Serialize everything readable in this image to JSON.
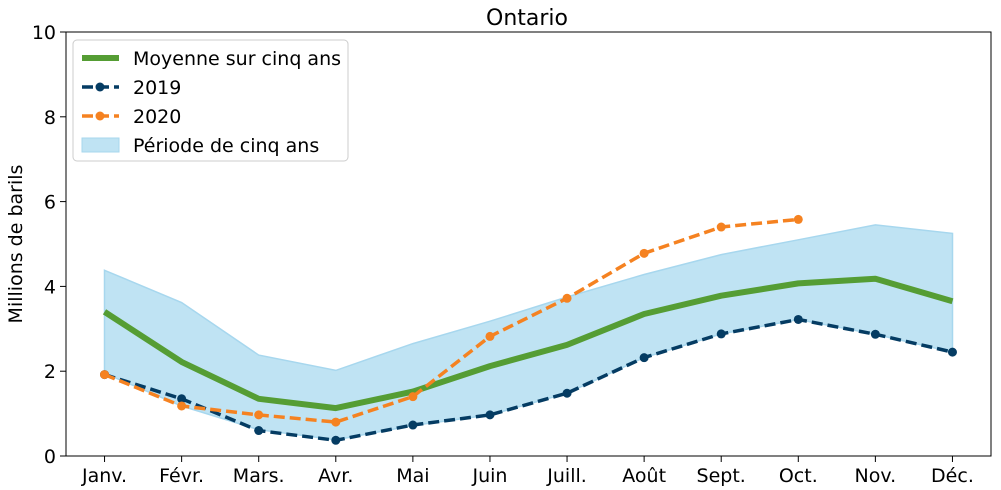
{
  "chart_data": {
    "type": "line",
    "title": "Ontario",
    "xlabel": "",
    "ylabel": "Millions de barils",
    "ylim": [
      0,
      10
    ],
    "yticks": [
      0,
      2,
      4,
      6,
      8,
      10
    ],
    "categories": [
      "Janv.",
      "Févr.",
      "Mars.",
      "Avr.",
      "Mai",
      "Juin",
      "Juill.",
      "Août",
      "Sept.",
      "Oct.",
      "Nov.",
      "Déc."
    ],
    "grid": false,
    "legend_position": "top-left",
    "band": {
      "name": "Période de cinq ans",
      "color": "#bfe3f3",
      "edge_color": "#a7d7ee",
      "upper": [
        4.38,
        3.62,
        2.38,
        2.02,
        2.65,
        3.18,
        3.75,
        4.28,
        4.75,
        5.1,
        5.45,
        5.25
      ],
      "lower": [
        1.95,
        1.18,
        0.62,
        0.38,
        0.72,
        0.97,
        1.48,
        2.32,
        2.88,
        3.22,
        2.87,
        2.45
      ]
    },
    "series": [
      {
        "name": "Moyenne sur cinq ans",
        "color": "#559d34",
        "style": "solid",
        "markers": false,
        "values": [
          3.4,
          2.22,
          1.35,
          1.13,
          1.52,
          2.12,
          2.62,
          3.35,
          3.78,
          4.07,
          4.18,
          3.65
        ]
      },
      {
        "name": "2019",
        "color": "#053c63",
        "style": "dashed",
        "markers": true,
        "values": [
          1.92,
          1.35,
          0.6,
          0.37,
          0.73,
          0.97,
          1.48,
          2.32,
          2.88,
          3.22,
          2.87,
          2.45
        ]
      },
      {
        "name": "2020",
        "color": "#f58221",
        "style": "dashed",
        "markers": true,
        "values": [
          1.92,
          1.18,
          0.97,
          0.8,
          1.4,
          2.82,
          3.72,
          4.78,
          5.4,
          5.58,
          null,
          null
        ]
      }
    ]
  }
}
